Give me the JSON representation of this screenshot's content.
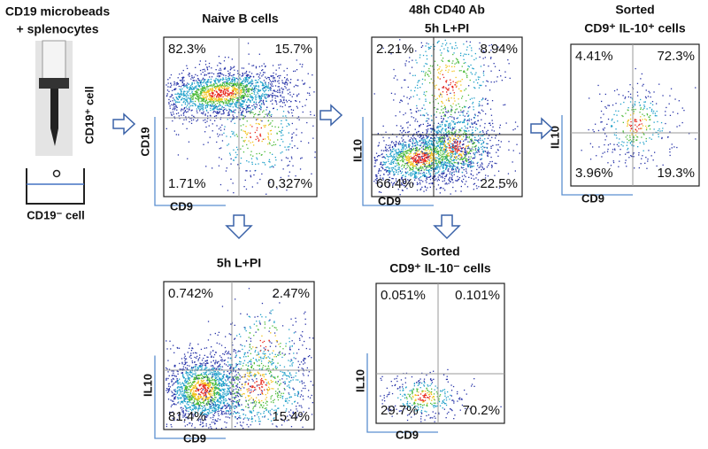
{
  "intro": {
    "title_lines": [
      "CD19 microbeads",
      "+ splenocytes"
    ],
    "positive_label": "CD19⁺ cell",
    "negative_label": "CD19⁻ cell"
  },
  "panels": [
    {
      "title_lines": [
        "Naive B cells"
      ],
      "quadrants": {
        "top_left": "82.3%",
        "top_right": "15.7%",
        "bottom_left": "1.71%",
        "bottom_right": "0.327%"
      },
      "y_axis": "CD19",
      "x_axis": "CD9"
    },
    {
      "title_lines": [
        "48h CD40 Ab",
        "5h L+PI"
      ],
      "quadrants": {
        "top_left": "2.21%",
        "top_right": "8.94%",
        "bottom_left": "66.4%",
        "bottom_right": "22.5%"
      },
      "y_axis": "IL10",
      "x_axis": "CD9"
    },
    {
      "title_lines": [
        "Sorted",
        "CD9⁺ IL-10⁺ cells"
      ],
      "quadrants": {
        "top_left": "4.41%",
        "top_right": "72.3%",
        "bottom_left": "3.96%",
        "bottom_right": "19.3%"
      },
      "y_axis": "IL10",
      "x_axis": "CD9"
    },
    {
      "title_lines": [
        "5h L+PI"
      ],
      "quadrants": {
        "top_left": "0.742%",
        "top_right": "2.47%",
        "bottom_left": "81.4%",
        "bottom_right": "15.4%"
      },
      "y_axis": "IL10",
      "x_axis": "CD9"
    },
    {
      "title_lines": [
        "Sorted",
        "CD9⁺ IL-10⁻ cells"
      ],
      "quadrants": {
        "top_left": "0.051%",
        "top_right": "0.101%",
        "bottom_left": "29.7%",
        "bottom_right": "70.2%"
      },
      "y_axis": "IL10",
      "x_axis": "CD9"
    }
  ]
}
